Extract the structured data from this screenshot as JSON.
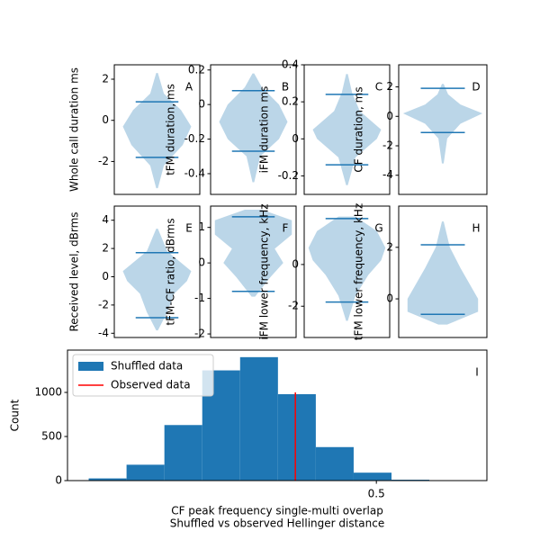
{
  "chart_data": [
    {
      "type": "violin",
      "annotation": "A",
      "ylabel": "Whole call duration ms",
      "color": "#1f77b4",
      "xlim": [
        0.5,
        1.5
      ],
      "ylim": [
        -3.6,
        2.7
      ],
      "yticks": [
        -2,
        0,
        2
      ],
      "max": 0.9,
      "min": -1.8,
      "violin": {
        "y": [
          -3.3,
          -2.2,
          -1.2,
          -0.3,
          0.5,
          1.3,
          2.3
        ],
        "width": [
          0.01,
          0.08,
          0.3,
          0.4,
          0.28,
          0.08,
          0.01
        ]
      }
    },
    {
      "type": "violin",
      "annotation": "B",
      "ylabel": "tFM duration, ms",
      "color": "#1f77b4",
      "xlim": [
        0.5,
        1.5
      ],
      "ylim": [
        -0.52,
        0.23
      ],
      "yticks": [
        -0.4,
        -0.2,
        0.0,
        0.2
      ],
      "max": 0.08,
      "min": -0.27,
      "violin": {
        "y": [
          -0.45,
          -0.3,
          -0.2,
          -0.1,
          0,
          0.1,
          0.18
        ],
        "width": [
          0.01,
          0.08,
          0.3,
          0.4,
          0.3,
          0.1,
          0.01
        ]
      }
    },
    {
      "type": "violin",
      "annotation": "C",
      "ylabel": "iFM duration ms",
      "color": "#1f77b4",
      "xlim": [
        0.5,
        1.5
      ],
      "ylim": [
        -0.3,
        0.4
      ],
      "yticks": [
        -0.2,
        0.0,
        0.2,
        0.4
      ],
      "max": 0.24,
      "min": -0.14,
      "violin": {
        "y": [
          -0.25,
          -0.1,
          0,
          0.05,
          0.15,
          0.25,
          0.35
        ],
        "width": [
          0.01,
          0.1,
          0.35,
          0.4,
          0.15,
          0.06,
          0.01
        ]
      }
    },
    {
      "type": "violin",
      "annotation": "D",
      "ylabel": "CF duration, ms",
      "color": "#1f77b4",
      "xlim": [
        0.5,
        1.5
      ],
      "ylim": [
        -5.3,
        3.5
      ],
      "yticks": [
        -4,
        -2,
        0,
        2
      ],
      "max": 1.9,
      "min": -1.1,
      "violin": {
        "y": [
          -3.2,
          -1.5,
          -0.5,
          0.2,
          0.8,
          1.5,
          2.2
        ],
        "width": [
          0.01,
          0.05,
          0.2,
          0.45,
          0.2,
          0.06,
          0.01
        ]
      }
    },
    {
      "type": "violin",
      "annotation": "E",
      "ylabel": "Received level, dBrms",
      "color": "#1f77b4",
      "xlim": [
        0.5,
        1.5
      ],
      "ylim": [
        -4.3,
        5
      ],
      "yticks": [
        -4,
        -2,
        0,
        2,
        4
      ],
      "max": 1.7,
      "min": -2.9,
      "violin": {
        "y": [
          -3.8,
          -2.5,
          -1.2,
          -0.3,
          0.4,
          1.8,
          3.4
        ],
        "width": [
          0.01,
          0.12,
          0.2,
          0.35,
          0.4,
          0.12,
          0.01
        ]
      }
    },
    {
      "type": "violin",
      "annotation": "F",
      "ylabel": "tFM-CF ratio, dBrms",
      "color": "#1f77b4",
      "xlim": [
        0.5,
        1.5
      ],
      "ylim": [
        -2.1,
        1.6
      ],
      "yticks": [
        -2,
        -1,
        0,
        1
      ],
      "max": 1.3,
      "min": -0.8,
      "violin": {
        "y": [
          -0.95,
          -0.4,
          0,
          0.4,
          0.8,
          1.2,
          1.5
        ],
        "width": [
          0.02,
          0.2,
          0.35,
          0.25,
          0.45,
          0.45,
          0.1
        ]
      }
    },
    {
      "type": "violin",
      "annotation": "G",
      "ylabel": "iFM lower frequency, kHz",
      "color": "#1f77b4",
      "xlim": [
        0.5,
        1.5
      ],
      "ylim": [
        -3.5,
        2.8
      ],
      "yticks": [
        -2,
        0
      ],
      "max": 2.2,
      "min": -1.8,
      "violin": {
        "y": [
          -2.7,
          -1.5,
          -0.5,
          0.2,
          0.8,
          1.6,
          2.3
        ],
        "width": [
          0.01,
          0.1,
          0.25,
          0.4,
          0.45,
          0.35,
          0.1
        ]
      }
    },
    {
      "type": "violin",
      "annotation": "H",
      "ylabel": "tFM lower frequency, kHz",
      "color": "#1f77b4",
      "xlim": [
        0.5,
        1.5
      ],
      "ylim": [
        -1.5,
        3.6
      ],
      "yticks": [
        0,
        2
      ],
      "max": 2.1,
      "min": -0.6,
      "violin": {
        "y": [
          -1,
          -0.5,
          0,
          0.6,
          1.2,
          2,
          3
        ],
        "width": [
          0.05,
          0.4,
          0.4,
          0.3,
          0.2,
          0.08,
          0.01
        ]
      }
    },
    {
      "type": "histogram",
      "annotation": "I",
      "xlabel": [
        "CF peak frequency single-multi overlap",
        "Shuffled vs observed Hellinger distance"
      ],
      "ylabel": "Count",
      "xlim": [
        0.092,
        0.646
      ],
      "xticks": [
        0.5
      ],
      "ylim": [
        0,
        1480
      ],
      "yticks": [
        0,
        500,
        1000
      ],
      "legend": "upper left",
      "bins": [
        0.12,
        0.17,
        0.22,
        0.27,
        0.32,
        0.37,
        0.42,
        0.47,
        0.52,
        0.57
      ],
      "series": [
        {
          "name": "Shuffled data",
          "color": "#1f77b4",
          "values": [
            25,
            180,
            630,
            1250,
            1400,
            980,
            380,
            90,
            10
          ]
        }
      ],
      "vlines": [
        {
          "name": "Observed data",
          "color": "red",
          "x": 0.393,
          "ymax": 1000
        }
      ]
    }
  ]
}
